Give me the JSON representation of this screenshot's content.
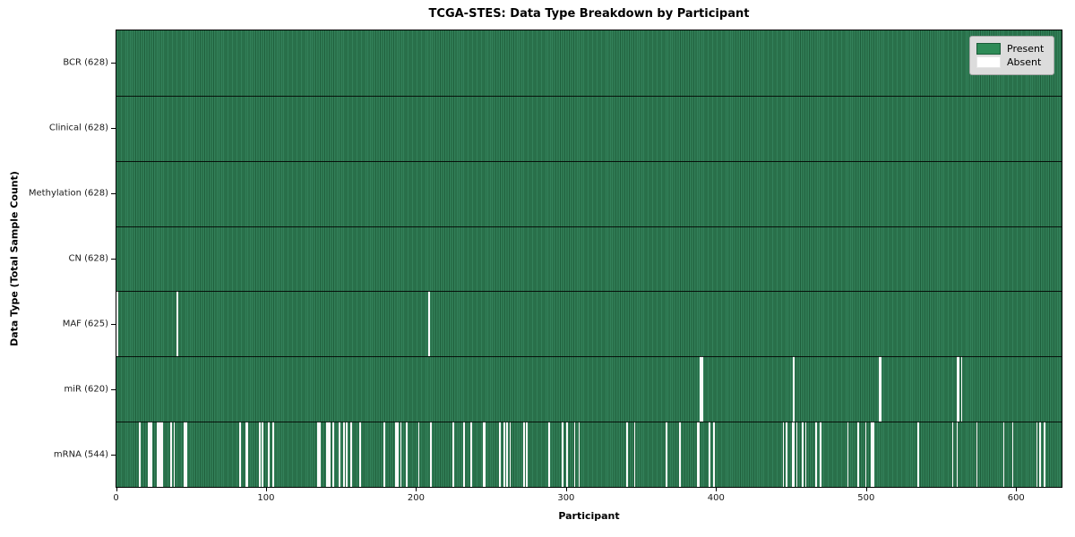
{
  "chart_data": {
    "type": "heatmap",
    "title": "TCGA-STES: Data Type Breakdown by Participant",
    "xlabel": "Participant",
    "ylabel": "Data Type (Total Sample Count)",
    "x_ticks": [
      0,
      100,
      200,
      300,
      400,
      500,
      600
    ],
    "xlim": [
      0,
      630
    ],
    "n_participants": 628,
    "grid": false,
    "legend": {
      "position": "upper right",
      "entries": [
        {
          "label": "Present",
          "color": "#2e8b57",
          "edge": "#1a5c38"
        },
        {
          "label": "Absent",
          "color": "#ffffff",
          "edge": "#e6e6e6"
        }
      ]
    },
    "colors": {
      "present_fill": "#33815a",
      "present_edge": "#1f5e3b",
      "absent": "#fafafa",
      "row_divider": "#000000",
      "plot_border": "#000000"
    },
    "rows": [
      {
        "label": "BCR (628)",
        "name": "BCR",
        "present_count": 628,
        "absent": []
      },
      {
        "label": "Clinical (628)",
        "name": "Clinical",
        "present_count": 628,
        "absent": []
      },
      {
        "label": "Methylation (628)",
        "name": "Methylation",
        "present_count": 628,
        "absent": []
      },
      {
        "label": "CN (628)",
        "name": "CN",
        "present_count": 628,
        "absent": []
      },
      {
        "label": "MAF (625)",
        "name": "MAF",
        "present_count": 625,
        "absent": [
          0,
          40,
          208
        ]
      },
      {
        "label": "miR (620)",
        "name": "miR",
        "present_count": 620,
        "absent": [
          389,
          390,
          451,
          508,
          509,
          560,
          561,
          563
        ]
      },
      {
        "label": "mRNA (544)",
        "name": "mRNA",
        "present_count": 544,
        "absent": [
          15,
          21,
          22,
          23,
          27,
          28,
          29,
          30,
          36,
          38,
          45,
          46,
          82,
          86,
          87,
          95,
          97,
          101,
          104,
          134,
          135,
          140,
          141,
          142,
          144,
          148,
          151,
          153,
          156,
          162,
          178,
          186,
          187,
          189,
          193,
          201,
          209,
          224,
          231,
          236,
          244,
          245,
          255,
          258,
          260,
          262,
          271,
          273,
          288,
          297,
          300,
          305,
          308,
          340,
          345,
          366,
          375,
          387,
          388,
          395,
          398,
          444,
          446,
          450,
          451,
          453,
          457,
          459,
          466,
          469,
          487,
          494,
          499,
          503,
          504,
          534,
          557,
          560,
          573,
          591,
          597,
          613,
          615,
          618
        ]
      }
    ]
  }
}
